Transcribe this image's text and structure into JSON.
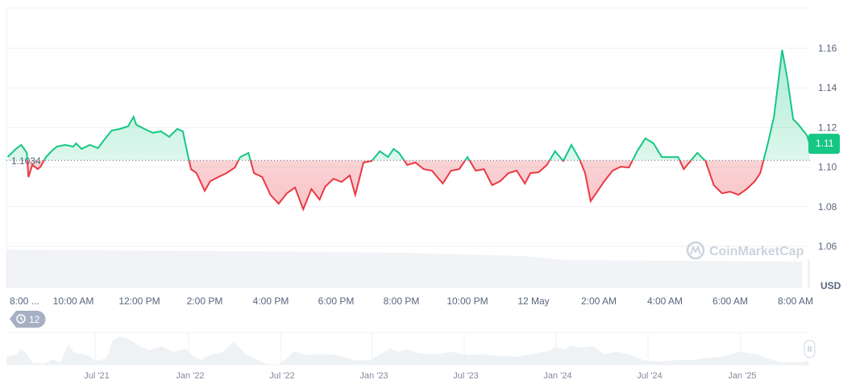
{
  "chart_data": {
    "type": "line",
    "title": "",
    "xlabel": "",
    "ylabel": "",
    "unit_label": "USD",
    "ylim": [
      1.05,
      1.17
    ],
    "y_ticks": [
      "1.06",
      "1.08",
      "1.10",
      "1.12",
      "1.14",
      "1.16"
    ],
    "x_ticks": [
      "8:00 ...",
      "10:00 AM",
      "12:00 PM",
      "2:00 PM",
      "4:00 PM",
      "6:00 PM",
      "8:00 PM",
      "10:00 PM",
      "12 May",
      "2:00 AM",
      "4:00 AM",
      "6:00 AM",
      "8:00 AM"
    ],
    "baseline": {
      "value": 1.1034,
      "label": "1.1034"
    },
    "last_price": {
      "value": 1.112,
      "label": "1.11"
    },
    "grid": true,
    "colors": {
      "up": "#16c784",
      "down": "#ea3943",
      "badge": "#16c784",
      "axis_text": "#58667e"
    },
    "series": [
      {
        "points": [
          [
            "05-11 08:00",
            1.1051
          ],
          [
            "05-11 08:15",
            1.1092
          ],
          [
            "05-11 08:25",
            1.1112
          ],
          [
            "05-11 08:35",
            1.1072
          ],
          [
            "05-11 08:38",
            1.095
          ],
          [
            "05-11 08:45",
            1.1011
          ],
          [
            "05-11 08:55",
            1.099
          ],
          [
            "05-11 09:00",
            1.1002
          ],
          [
            "05-11 09:10",
            1.1051
          ],
          [
            "05-11 09:20",
            1.108
          ],
          [
            "05-11 09:30",
            1.1104
          ],
          [
            "05-11 09:45",
            1.1112
          ],
          [
            "05-11 10:00",
            1.1104
          ],
          [
            "05-11 10:05",
            1.112
          ],
          [
            "05-11 10:15",
            1.1092
          ],
          [
            "05-11 10:30",
            1.1112
          ],
          [
            "05-11 10:45",
            1.1096
          ],
          [
            "05-11 10:55",
            1.1133
          ],
          [
            "05-11 11:10",
            1.1185
          ],
          [
            "05-11 11:25",
            1.1193
          ],
          [
            "05-11 11:40",
            1.1206
          ],
          [
            "05-11 11:50",
            1.1254
          ],
          [
            "05-11 11:55",
            1.1214
          ],
          [
            "05-11 12:10",
            1.1193
          ],
          [
            "05-11 12:25",
            1.1173
          ],
          [
            "05-11 12:40",
            1.1181
          ],
          [
            "05-11 12:55",
            1.1153
          ],
          [
            "05-11 13:10",
            1.1193
          ],
          [
            "05-11 13:20",
            1.1181
          ],
          [
            "05-11 13:30",
            1.1051
          ],
          [
            "05-11 13:35",
            1.099
          ],
          [
            "05-11 13:45",
            1.097
          ],
          [
            "05-11 14:00",
            1.088
          ],
          [
            "05-11 14:10",
            1.0929
          ],
          [
            "05-11 14:25",
            1.095
          ],
          [
            "05-11 14:40",
            1.097
          ],
          [
            "05-11 14:55",
            1.0998
          ],
          [
            "05-11 15:05",
            1.1051
          ],
          [
            "05-11 15:20",
            1.1072
          ],
          [
            "05-11 15:30",
            1.097
          ],
          [
            "05-11 15:45",
            1.095
          ],
          [
            "05-11 16:00",
            1.086
          ],
          [
            "05-11 16:15",
            1.0815
          ],
          [
            "05-11 16:30",
            1.0868
          ],
          [
            "05-11 16:45",
            1.0897
          ],
          [
            "05-11 17:00",
            1.0787
          ],
          [
            "05-11 17:15",
            1.0889
          ],
          [
            "05-11 17:30",
            1.0836
          ],
          [
            "05-11 17:40",
            1.0901
          ],
          [
            "05-11 17:55",
            1.0941
          ],
          [
            "05-11 18:10",
            1.0925
          ],
          [
            "05-11 18:25",
            1.0958
          ],
          [
            "05-11 18:35",
            1.086
          ],
          [
            "05-11 18:50",
            1.1023
          ],
          [
            "05-11 19:05",
            1.1031
          ],
          [
            "05-11 19:20",
            1.108
          ],
          [
            "05-11 19:35",
            1.1051
          ],
          [
            "05-11 19:45",
            1.1092
          ],
          [
            "05-11 19:55",
            1.1072
          ],
          [
            "05-11 20:10",
            1.1011
          ],
          [
            "05-11 20:25",
            1.1023
          ],
          [
            "05-11 20:40",
            1.099
          ],
          [
            "05-11 20:55",
            1.0982
          ],
          [
            "05-11 21:15",
            1.0917
          ],
          [
            "05-11 21:30",
            1.0982
          ],
          [
            "05-11 21:45",
            1.099
          ],
          [
            "05-11 22:00",
            1.1051
          ],
          [
            "05-11 22:15",
            1.0982
          ],
          [
            "05-11 22:30",
            1.099
          ],
          [
            "05-11 22:45",
            1.0909
          ],
          [
            "05-11 23:00",
            1.0929
          ],
          [
            "05-11 23:15",
            1.097
          ],
          [
            "05-11 23:30",
            1.0982
          ],
          [
            "05-11 23:45",
            1.0917
          ],
          [
            "05-11 23:55",
            1.097
          ],
          [
            "05-12 00:10",
            1.0974
          ],
          [
            "05-12 00:25",
            1.1011
          ],
          [
            "05-12 00:40",
            1.108
          ],
          [
            "05-12 00:55",
            1.1031
          ],
          [
            "05-12 01:10",
            1.1112
          ],
          [
            "05-12 01:25",
            1.1039
          ],
          [
            "05-12 01:35",
            1.097
          ],
          [
            "05-12 01:45",
            1.0828
          ],
          [
            "05-12 01:55",
            1.0868
          ],
          [
            "05-12 02:10",
            1.0929
          ],
          [
            "05-12 02:25",
            1.0982
          ],
          [
            "05-12 02:40",
            1.1002
          ],
          [
            "05-12 02:55",
            1.0998
          ],
          [
            "05-12 03:10",
            1.108
          ],
          [
            "05-12 03:25",
            1.1145
          ],
          [
            "05-12 03:40",
            1.112
          ],
          [
            "05-12 03:55",
            1.1051
          ],
          [
            "05-12 04:10",
            1.1051
          ],
          [
            "05-12 04:25",
            1.1051
          ],
          [
            "05-12 04:35",
            1.099
          ],
          [
            "05-12 05:00",
            1.1072
          ],
          [
            "05-12 05:15",
            1.1031
          ],
          [
            "05-12 05:30",
            1.0909
          ],
          [
            "05-12 05:45",
            1.0868
          ],
          [
            "05-12 06:00",
            1.0876
          ],
          [
            "05-12 06:15",
            1.086
          ],
          [
            "05-12 06:30",
            1.0889
          ],
          [
            "05-12 06:45",
            1.0929
          ],
          [
            "05-12 06:55",
            1.097
          ],
          [
            "05-12 07:10",
            1.1133
          ],
          [
            "05-12 07:20",
            1.1254
          ],
          [
            "05-12 07:35",
            1.1592
          ],
          [
            "05-12 07:45",
            1.1437
          ],
          [
            "05-12 07:55",
            1.1242
          ],
          [
            "05-12 08:05",
            1.1214
          ],
          [
            "05-12 08:20",
            1.1161
          ],
          [
            "05-12 08:25",
            1.112
          ]
        ]
      }
    ],
    "navigator": {
      "x_ticks": [
        "Jul '21",
        "Jan '22",
        "Jul '22",
        "Jan '23",
        "Jul '23",
        "Jan '24",
        "Jul '24",
        "Jan '25"
      ]
    }
  },
  "history_badge": {
    "icon": "clock-history-icon",
    "count": "12"
  },
  "watermark": "CoinMarketCap"
}
